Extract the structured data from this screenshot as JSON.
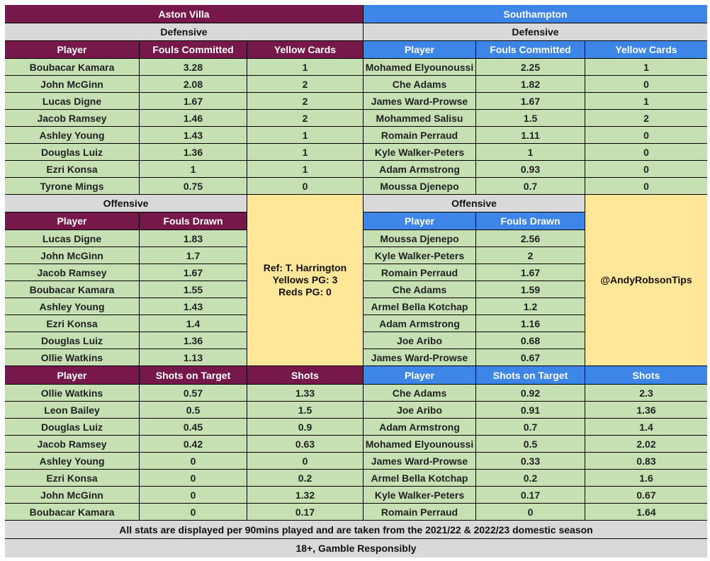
{
  "aston_villa": {
    "name": "Aston Villa",
    "defensive": {
      "section_label": "Defensive",
      "headers": [
        "Player",
        "Fouls Committed",
        "Yellow Cards"
      ],
      "rows": [
        [
          "Boubacar Kamara",
          "3.28",
          "1"
        ],
        [
          "John McGinn",
          "2.08",
          "2"
        ],
        [
          "Lucas Digne",
          "1.67",
          "2"
        ],
        [
          "Jacob Ramsey",
          "1.46",
          "2"
        ],
        [
          "Ashley Young",
          "1.43",
          "1"
        ],
        [
          "Douglas Luiz",
          "1.36",
          "1"
        ],
        [
          "Ezri Konsa",
          "1",
          "1"
        ],
        [
          "Tyrone Mings",
          "0.75",
          "0"
        ]
      ]
    },
    "offensive": {
      "section_label": "Offensive",
      "headers": [
        "Player",
        "Fouls Drawn"
      ],
      "rows": [
        [
          "Lucas Digne",
          "1.83"
        ],
        [
          "John McGinn",
          "1.7"
        ],
        [
          "Jacob Ramsey",
          "1.67"
        ],
        [
          "Boubacar Kamara",
          "1.55"
        ],
        [
          "Ashley Young",
          "1.43"
        ],
        [
          "Ezri Konsa",
          "1.4"
        ],
        [
          "Douglas Luiz",
          "1.36"
        ],
        [
          "Ollie Watkins",
          "1.13"
        ]
      ]
    },
    "shots": {
      "headers": [
        "Player",
        "Shots on Target",
        "Shots"
      ],
      "rows": [
        [
          "Ollie Watkins",
          "0.57",
          "1.33"
        ],
        [
          "Leon Bailey",
          "0.5",
          "1.5"
        ],
        [
          "Douglas Luiz",
          "0.45",
          "0.9"
        ],
        [
          "Jacob Ramsey",
          "0.42",
          "0.63"
        ],
        [
          "Ashley Young",
          "0",
          "0"
        ],
        [
          "Ezri Konsa",
          "0",
          "0.2"
        ],
        [
          "John McGinn",
          "0",
          "1.32"
        ],
        [
          "Boubacar Kamara",
          "0",
          "0.17"
        ]
      ]
    }
  },
  "southampton": {
    "name": "Southampton",
    "defensive": {
      "section_label": "Defensive",
      "headers": [
        "Player",
        "Fouls Committed",
        "Yellow Cards"
      ],
      "rows": [
        [
          "Mohamed Elyounoussi",
          "2.25",
          "1"
        ],
        [
          "Che Adams",
          "1.82",
          "0"
        ],
        [
          "James Ward-Prowse",
          "1.67",
          "1"
        ],
        [
          "Mohammed Salisu",
          "1.5",
          "2"
        ],
        [
          "Romain Perraud",
          "1.11",
          "0"
        ],
        [
          "Kyle Walker-Peters",
          "1",
          "0"
        ],
        [
          "Adam Armstrong",
          "0.93",
          "0"
        ],
        [
          "Moussa Djenepo",
          "0.7",
          "0"
        ]
      ]
    },
    "offensive": {
      "section_label": "Offensive",
      "headers": [
        "Player",
        "Fouls Drawn"
      ],
      "rows": [
        [
          "Moussa Djenepo",
          "2.56"
        ],
        [
          "Kyle Walker-Peters",
          "2"
        ],
        [
          "Romain Perraud",
          "1.67"
        ],
        [
          "Che Adams",
          "1.59"
        ],
        [
          "Armel Bella Kotchap",
          "1.2"
        ],
        [
          "Adam Armstrong",
          "1.16"
        ],
        [
          "Joe Aribo",
          "0.68"
        ],
        [
          "James Ward-Prowse",
          "0.67"
        ]
      ]
    },
    "shots": {
      "headers": [
        "Player",
        "Shots on Target",
        "Shots"
      ],
      "rows": [
        [
          "Che Adams",
          "0.92",
          "2.3"
        ],
        [
          "Joe Aribo",
          "0.91",
          "1.36"
        ],
        [
          "Adam Armstrong",
          "0.7",
          "1.4"
        ],
        [
          "Mohamed Elyounoussi",
          "0.5",
          "2.02"
        ],
        [
          "James Ward-Prowse",
          "0.33",
          "0.83"
        ],
        [
          "Armel Bella Kotchap",
          "0.2",
          "1.6"
        ],
        [
          "Kyle Walker-Peters",
          "0.17",
          "0.67"
        ],
        [
          "Romain Perraud",
          "0",
          "1.64"
        ]
      ]
    }
  },
  "referee": {
    "lines": [
      "Ref: T. Harrington",
      "Yellows PG: 3",
      "Reds PG: 0"
    ]
  },
  "credit": "@AndyRobsonTips",
  "footer": {
    "note": "All stats are displayed per 90mins played and are taken from the 2021/22 & 2022/23 domestic season",
    "disclaimer": "18+, Gamble Responsibly"
  },
  "colors": {
    "villa_header": "#76194a",
    "southampton_header": "#3d85e6",
    "data_cell": "#c6e0b4",
    "section_label": "#d9d9d9",
    "info_box": "#ffe699"
  }
}
